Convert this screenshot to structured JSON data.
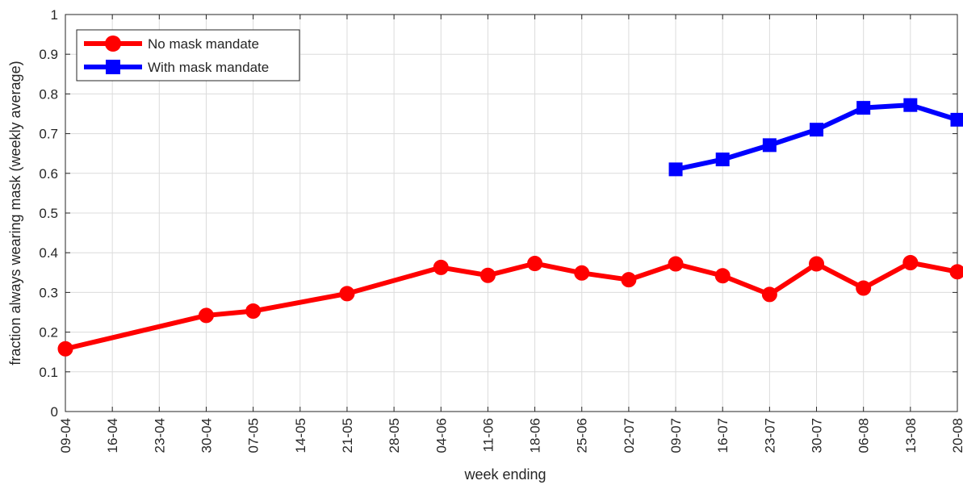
{
  "chart_data": {
    "type": "line",
    "xlabel": "week ending",
    "ylabel": "fraction always wearing mask (weekly average)",
    "ylim": [
      0,
      1
    ],
    "yticks": [
      "0",
      "0.1",
      "0.2",
      "0.3",
      "0.4",
      "0.5",
      "0.6",
      "0.7",
      "0.8",
      "0.9",
      "1"
    ],
    "categories": [
      "09-04",
      "16-04",
      "23-04",
      "30-04",
      "07-05",
      "14-05",
      "21-05",
      "28-05",
      "04-06",
      "11-06",
      "18-06",
      "25-06",
      "02-07",
      "09-07",
      "16-07",
      "23-07",
      "30-07",
      "06-08",
      "13-08",
      "20-08"
    ],
    "grid": true,
    "legend_position": "top-left",
    "series": [
      {
        "name": "No mask mandate",
        "color": "#ff0000",
        "marker": "circle",
        "values": [
          0.158,
          null,
          null,
          0.242,
          0.253,
          null,
          0.297,
          null,
          0.363,
          0.343,
          0.373,
          0.349,
          0.332,
          0.372,
          0.342,
          0.295,
          0.372,
          0.311,
          0.375,
          0.352
        ]
      },
      {
        "name": "With mask mandate",
        "color": "#0000ff",
        "marker": "square",
        "values": [
          null,
          null,
          null,
          null,
          null,
          null,
          null,
          null,
          null,
          null,
          null,
          null,
          null,
          0.61,
          0.635,
          0.671,
          0.71,
          0.765,
          0.772,
          0.735
        ]
      }
    ]
  }
}
